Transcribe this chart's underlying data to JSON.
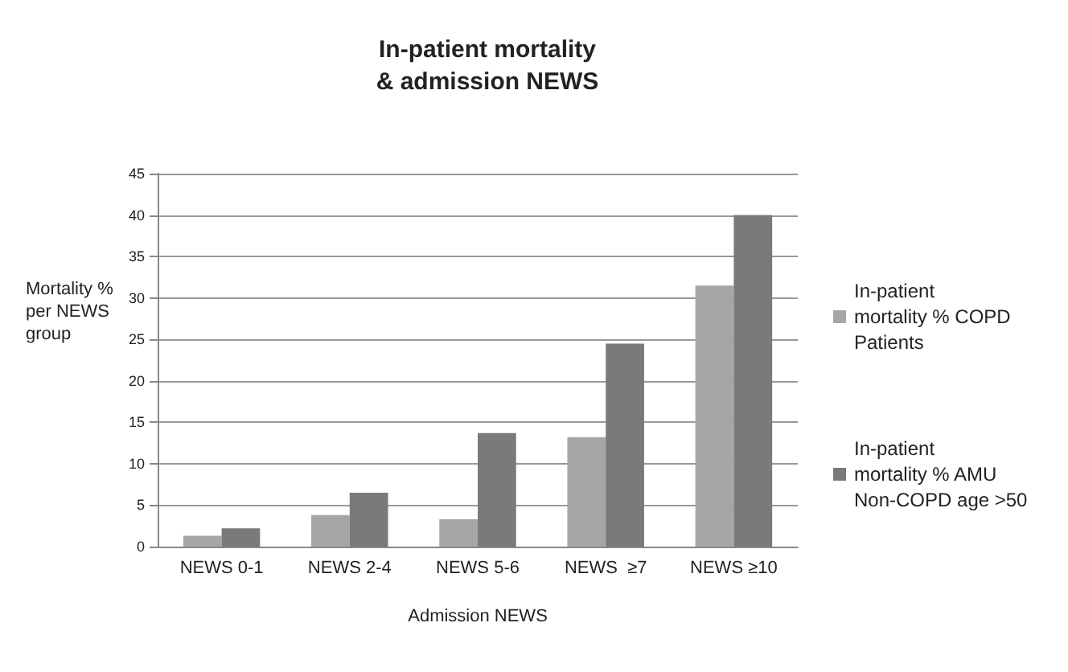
{
  "chart_data": {
    "type": "bar",
    "title": "In-patient mortality\n& admission NEWS",
    "xlabel": "Admission NEWS",
    "ylabel": "Mortality % per NEWS group",
    "categories": [
      "NEWS 0-1",
      "NEWS 2-4",
      "NEWS 5-6",
      "NEWS  ≥7",
      "NEWS ≥10"
    ],
    "series": [
      {
        "name": "In-patient mortality % COPD Patients",
        "color": "#a6a6a6",
        "values": [
          1.3,
          3.8,
          3.3,
          13.2,
          31.5
        ]
      },
      {
        "name": "In-patient mortality % AMU Non-COPD age >50",
        "color": "#7a7a7a",
        "values": [
          2.2,
          6.5,
          13.7,
          24.5,
          40
        ]
      }
    ],
    "ylim": [
      0,
      45
    ],
    "yticks": [
      0,
      5,
      10,
      15,
      20,
      25,
      30,
      35,
      40,
      45
    ],
    "grid": "y",
    "legend": "right"
  }
}
